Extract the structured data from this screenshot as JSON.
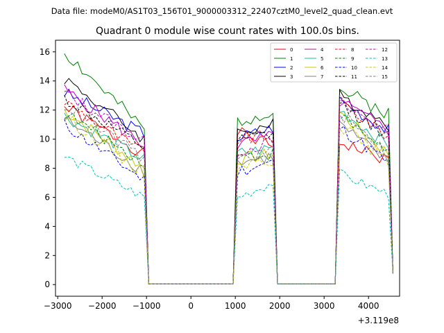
{
  "chart_data": {
    "type": "line",
    "suptitle": "Data file: modeM0/AS1T03_156T01_9000003312_22407cztM0_level2_quad_clean.evt",
    "title": "Quadrant 0 module wise count rates with 100.0s bins.",
    "xlabel": "",
    "ylabel": "",
    "x_offset_label": "+3.119e8",
    "xlim": [
      -3050,
      4700
    ],
    "ylim": [
      -0.8,
      16.8
    ],
    "xticks": [
      -3000,
      -2000,
      -1000,
      0,
      1000,
      2000,
      3000,
      4000
    ],
    "xtick_labels": [
      "−3000",
      "−2000",
      "−1000",
      "0",
      "1000",
      "2000",
      "3000",
      "4000"
    ],
    "yticks": [
      0,
      2,
      4,
      6,
      8,
      10,
      12,
      14,
      16
    ],
    "ytick_labels": [
      "0",
      "2",
      "4",
      "6",
      "8",
      "10",
      "12",
      "14",
      "16"
    ],
    "legend_position": "top-right",
    "segments": [
      {
        "start": -2850,
        "end": -1050
      },
      {
        "start": 1050,
        "end": 1850
      },
      {
        "start": 3350,
        "end": 4450
      }
    ],
    "series": [
      {
        "name": "0",
        "color": "#ff0000",
        "dash": "solid",
        "levels": [
          12.2,
          9.0,
          10.5,
          9.5,
          9.8,
          8.5
        ],
        "amp": 0.45,
        "seed": 1
      },
      {
        "name": "1",
        "color": "#008000",
        "dash": "solid",
        "levels": [
          16.0,
          10.6,
          11.2,
          12.0,
          13.4,
          11.8
        ],
        "amp": 0.5,
        "seed": 2
      },
      {
        "name": "2",
        "color": "#0000ff",
        "dash": "solid",
        "levels": [
          13.2,
          10.4,
          10.1,
          10.8,
          12.7,
          10.6
        ],
        "amp": 0.45,
        "seed": 3
      },
      {
        "name": "3",
        "color": "#000000",
        "dash": "solid",
        "levels": [
          14.2,
          10.0,
          10.5,
          11.0,
          13.0,
          11.0
        ],
        "amp": 0.45,
        "seed": 4
      },
      {
        "name": "4",
        "color": "#c000c0",
        "dash": "solid",
        "levels": [
          13.4,
          9.6,
          9.6,
          10.2,
          12.6,
          10.6
        ],
        "amp": 0.45,
        "seed": 5
      },
      {
        "name": "5",
        "color": "#1abc9c",
        "dash": "solid",
        "levels": [
          11.6,
          8.6,
          9.0,
          9.4,
          12.0,
          9.6
        ],
        "amp": 0.45,
        "seed": 6
      },
      {
        "name": "6",
        "color": "#c8c800",
        "dash": "solid",
        "levels": [
          12.0,
          8.0,
          8.6,
          9.0,
          11.8,
          9.0
        ],
        "amp": 0.45,
        "seed": 7
      },
      {
        "name": "7",
        "color": "#7f7f7f",
        "dash": "solid",
        "levels": [
          11.4,
          7.8,
          8.4,
          8.8,
          11.0,
          8.4
        ],
        "amp": 0.45,
        "seed": 8
      },
      {
        "name": "8",
        "color": "#ff0000",
        "dash": "dashed",
        "levels": [
          12.6,
          9.0,
          10.0,
          10.2,
          12.6,
          10.2
        ],
        "amp": 0.45,
        "seed": 9
      },
      {
        "name": "9",
        "color": "#008000",
        "dash": "dashed",
        "levels": [
          11.8,
          8.4,
          8.8,
          9.0,
          11.6,
          9.2
        ],
        "amp": 0.45,
        "seed": 10
      },
      {
        "name": "10",
        "color": "#0000ff",
        "dash": "dashed",
        "levels": [
          11.0,
          7.2,
          7.8,
          8.4,
          10.8,
          8.4
        ],
        "amp": 0.45,
        "seed": 11
      },
      {
        "name": "11",
        "color": "#000000",
        "dash": "dashed",
        "levels": [
          12.8,
          9.4,
          9.8,
          10.4,
          12.4,
          10.2
        ],
        "amp": 0.45,
        "seed": 12
      },
      {
        "name": "12",
        "color": "#c000c0",
        "dash": "dashed",
        "levels": [
          13.2,
          9.8,
          9.2,
          9.8,
          12.4,
          10.6
        ],
        "amp": 0.45,
        "seed": 13
      },
      {
        "name": "13",
        "color": "#00c0c0",
        "dash": "dashed",
        "levels": [
          8.8,
          6.0,
          6.0,
          7.0,
          7.6,
          6.2
        ],
        "amp": 0.35,
        "seed": 14
      },
      {
        "name": "14",
        "color": "#c8c800",
        "dash": "dashed",
        "levels": [
          11.6,
          7.6,
          8.2,
          8.6,
          11.0,
          8.4
        ],
        "amp": 0.45,
        "seed": 15
      },
      {
        "name": "15",
        "color": "#7f7f7f",
        "dash": "dashed",
        "levels": [
          12.4,
          8.6,
          8.6,
          9.2,
          11.8,
          9.0
        ],
        "amp": 0.45,
        "seed": 16
      }
    ]
  }
}
